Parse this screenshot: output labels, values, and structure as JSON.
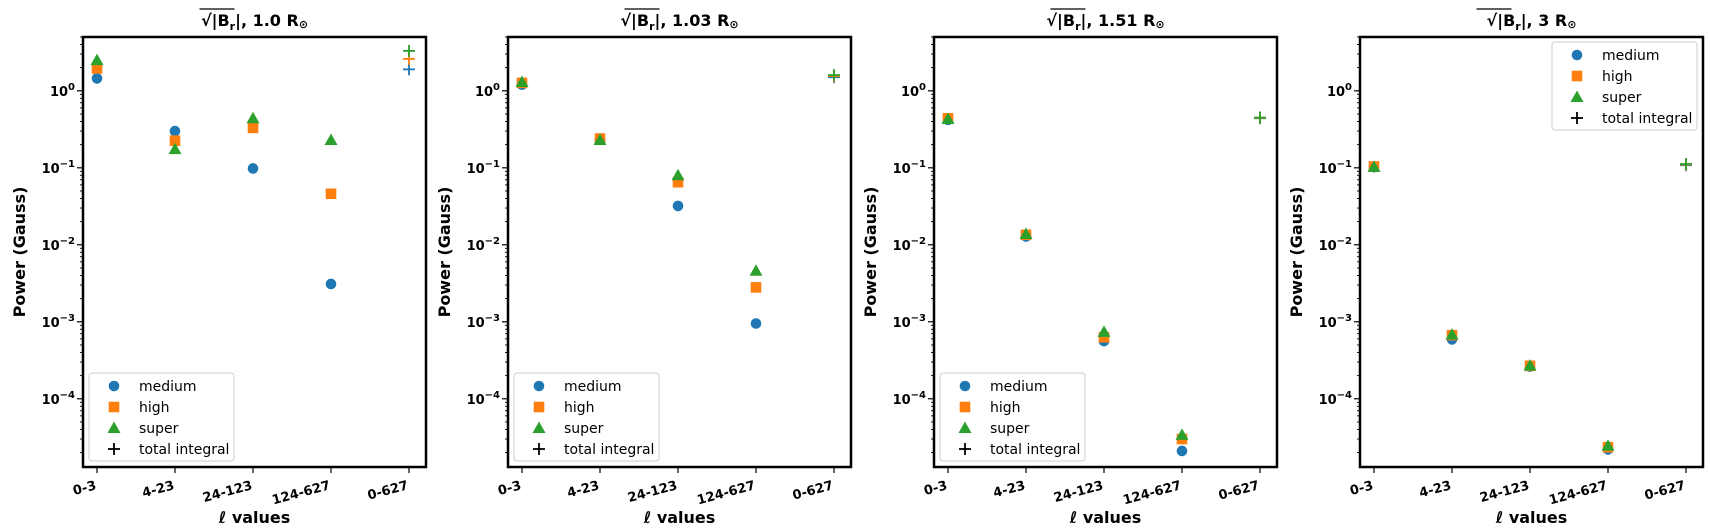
{
  "figure": {
    "series_styles": [
      {
        "name": "medium",
        "marker": "circle",
        "color": "#1f77b4"
      },
      {
        "name": "high",
        "marker": "square",
        "color": "#ff7f0e"
      },
      {
        "name": "super",
        "marker": "triangle",
        "color": "#2ca02c"
      }
    ],
    "total_marker": "plus"
  },
  "chart_data": [
    {
      "type": "scatter",
      "title_prefix": "√|B",
      "title_sub": "r",
      "title_suffix": "|, 1.0 R",
      "title_sun": "⊙",
      "xlabel_l": "ℓ",
      "xlabel": " values",
      "ylabel": "Power (Gauss)",
      "yscale": "log",
      "ylim": [
        1.3e-05,
        5.0
      ],
      "yticks": [
        {
          "exp": 0,
          "label": "10",
          "sup": "0"
        },
        {
          "exp": -1,
          "label": "10",
          "sup": "−1"
        },
        {
          "exp": -2,
          "label": "10",
          "sup": "−2"
        },
        {
          "exp": -3,
          "label": "10",
          "sup": "−3"
        },
        {
          "exp": -4,
          "label": "10",
          "sup": "−4"
        }
      ],
      "categories": [
        "0-3",
        "4-23",
        "24-123",
        "124-627",
        "0-627"
      ],
      "series": [
        {
          "name": "medium",
          "values": [
            1.45,
            0.3,
            0.098,
            0.0031
          ]
        },
        {
          "name": "high",
          "values": [
            1.95,
            0.225,
            0.33,
            0.046
          ]
        },
        {
          "name": "super",
          "values": [
            2.5,
            0.175,
            0.44,
            0.23
          ]
        }
      ],
      "total_integral": {
        "name": "total integral",
        "values": [
          1.9,
          2.6,
          3.3
        ]
      },
      "legend": {
        "position": "lower-left",
        "entries": [
          "medium",
          "high",
          "super",
          "total integral"
        ]
      }
    },
    {
      "type": "scatter",
      "title_prefix": "√|B",
      "title_sub": "r",
      "title_suffix": "|, 1.03 R",
      "title_sun": "⊙",
      "xlabel_l": "ℓ",
      "xlabel": " values",
      "ylabel": "Power (Gauss)",
      "yscale": "log",
      "ylim": [
        1.3e-05,
        5.0
      ],
      "yticks": [
        {
          "exp": 0,
          "label": "10",
          "sup": "0"
        },
        {
          "exp": -1,
          "label": "10",
          "sup": "−1"
        },
        {
          "exp": -2,
          "label": "10",
          "sup": "−2"
        },
        {
          "exp": -3,
          "label": "10",
          "sup": "−3"
        },
        {
          "exp": -4,
          "label": "10",
          "sup": "−4"
        }
      ],
      "categories": [
        "0-3",
        "4-23",
        "24-123",
        "124-627",
        "0-627"
      ],
      "series": [
        {
          "name": "medium",
          "values": [
            1.2,
            0.235,
            0.032,
            0.00095
          ]
        },
        {
          "name": "high",
          "values": [
            1.27,
            0.24,
            0.065,
            0.0028
          ]
        },
        {
          "name": "super",
          "values": [
            1.3,
            0.23,
            0.08,
            0.0046
          ]
        }
      ],
      "total_integral": {
        "name": "total integral",
        "values": [
          1.5,
          1.55,
          1.6
        ]
      },
      "legend": {
        "position": "lower-left",
        "entries": [
          "medium",
          "high",
          "super",
          "total integral"
        ]
      }
    },
    {
      "type": "scatter",
      "title_prefix": "√|B",
      "title_sub": "r",
      "title_suffix": "|, 1.51 R",
      "title_sun": "⊙",
      "xlabel_l": "ℓ",
      "xlabel": " values",
      "ylabel": "Power (Gauss)",
      "yscale": "log",
      "ylim": [
        1.3e-05,
        5.0
      ],
      "yticks": [
        {
          "exp": 0,
          "label": "10",
          "sup": "0"
        },
        {
          "exp": -1,
          "label": "10",
          "sup": "−1"
        },
        {
          "exp": -2,
          "label": "10",
          "sup": "−2"
        },
        {
          "exp": -3,
          "label": "10",
          "sup": "−3"
        },
        {
          "exp": -4,
          "label": "10",
          "sup": "−4"
        }
      ],
      "categories": [
        "0-3",
        "4-23",
        "24-123",
        "124-627",
        "0-627"
      ],
      "series": [
        {
          "name": "medium",
          "values": [
            0.42,
            0.0128,
            0.00056,
            2.1e-05
          ]
        },
        {
          "name": "high",
          "values": [
            0.44,
            0.0135,
            0.00063,
            3e-05
          ]
        },
        {
          "name": "super",
          "values": [
            0.43,
            0.0138,
            0.00074,
            3.4e-05
          ]
        }
      ],
      "total_integral": {
        "name": "total integral",
        "values": [
          0.44,
          0.445,
          0.45
        ]
      },
      "legend": {
        "position": "lower-left",
        "entries": [
          "medium",
          "high",
          "super",
          "total integral"
        ]
      }
    },
    {
      "type": "scatter",
      "title_prefix": "√|B",
      "title_sub": "r",
      "title_suffix": "|, 3 R",
      "title_sun": "⊙",
      "xlabel_l": "ℓ",
      "xlabel": " values",
      "ylabel": "Power (Gauss)",
      "yscale": "log",
      "ylim": [
        1.3e-05,
        5.0
      ],
      "yticks": [
        {
          "exp": 0,
          "label": "10",
          "sup": "0"
        },
        {
          "exp": -1,
          "label": "10",
          "sup": "−1"
        },
        {
          "exp": -2,
          "label": "10",
          "sup": "−2"
        },
        {
          "exp": -3,
          "label": "10",
          "sup": "−3"
        },
        {
          "exp": -4,
          "label": "10",
          "sup": "−4"
        }
      ],
      "categories": [
        "0-3",
        "4-23",
        "24-123",
        "124-627",
        "0-627"
      ],
      "series": [
        {
          "name": "medium",
          "values": [
            0.102,
            0.00059,
            0.000262,
            2.2e-05
          ]
        },
        {
          "name": "high",
          "values": [
            0.104,
            0.00067,
            0.000268,
            2.35e-05
          ]
        },
        {
          "name": "super",
          "values": [
            0.103,
            0.00068,
            0.00027,
            2.45e-05
          ]
        }
      ],
      "total_integral": {
        "name": "total integral",
        "values": [
          0.108,
          0.11,
          0.112
        ]
      },
      "legend": {
        "position": "top-right",
        "entries": [
          "medium",
          "high",
          "super",
          "total integral"
        ]
      }
    }
  ]
}
